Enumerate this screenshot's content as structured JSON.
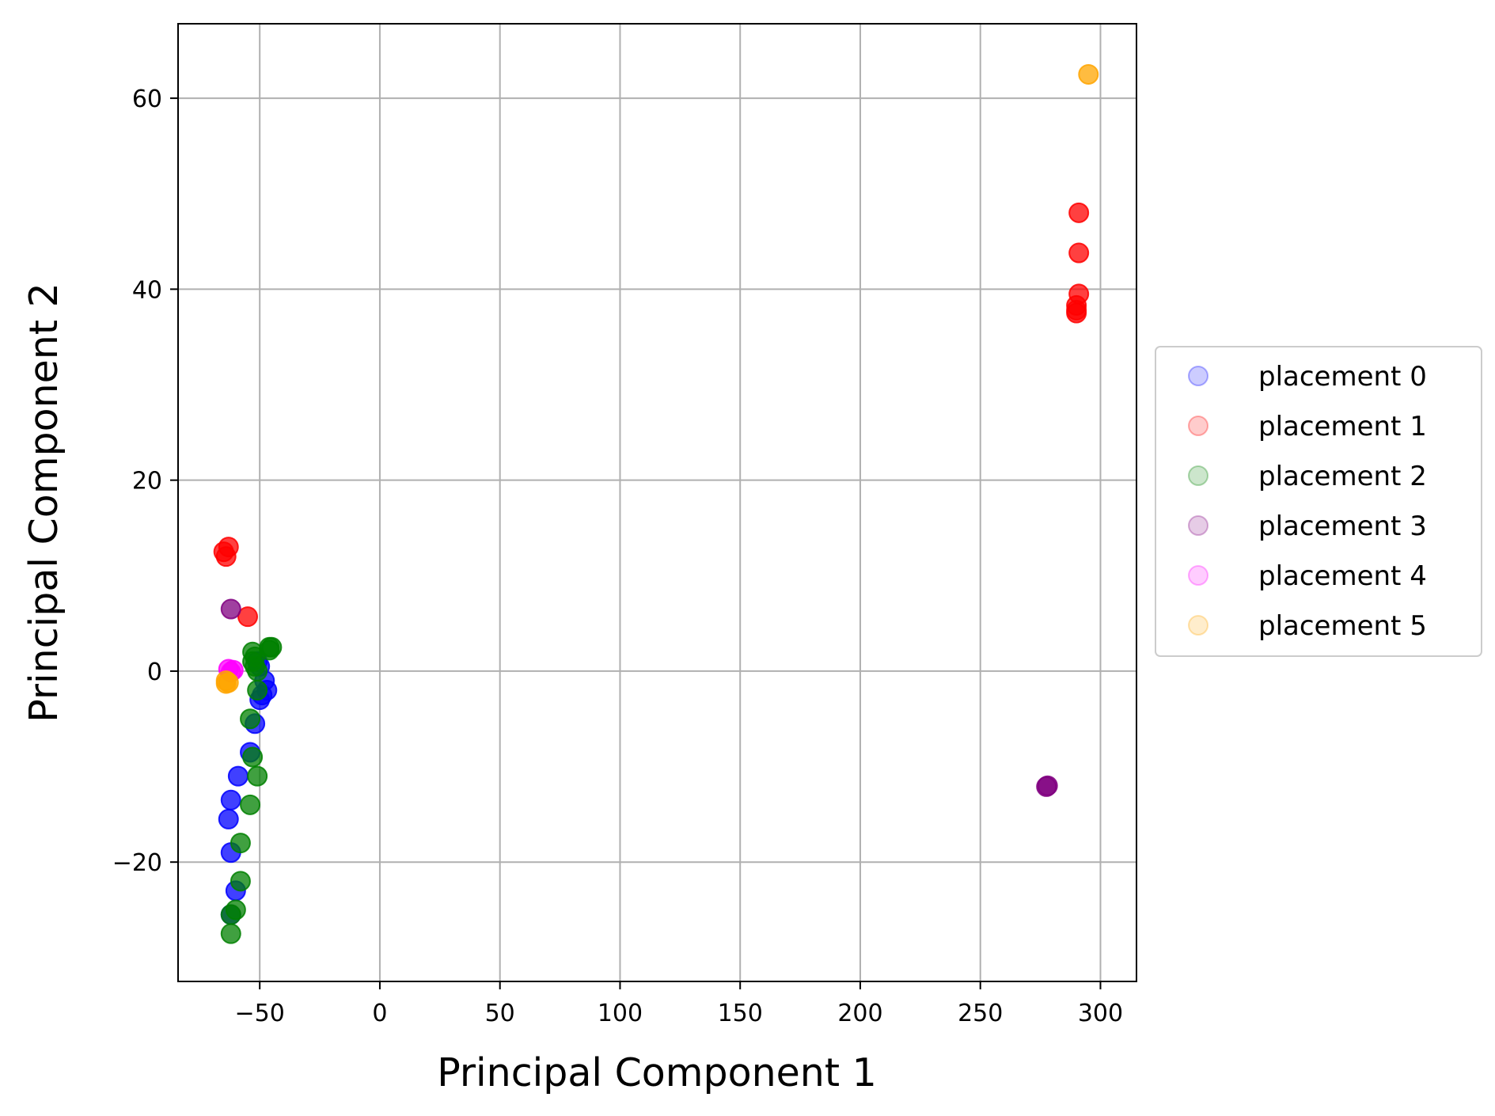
{
  "chart_data": {
    "type": "scatter",
    "title": "",
    "xlabel": "Principal Component 1",
    "ylabel": "Principal Component 2",
    "xlim": [
      -84,
      315
    ],
    "ylim": [
      -32.5,
      67.8
    ],
    "xticks": [
      -50,
      0,
      50,
      100,
      150,
      200,
      250,
      300
    ],
    "xtick_labels": [
      "−50",
      "0",
      "50",
      "100",
      "150",
      "200",
      "250",
      "300"
    ],
    "yticks": [
      -20,
      0,
      20,
      40,
      60
    ],
    "ytick_labels": [
      "−20",
      "0",
      "20",
      "40",
      "60"
    ],
    "grid": true,
    "legend_position": "right, outside plot area",
    "series": [
      {
        "name": "placement 0",
        "color": "#0000ff",
        "points": [
          [
            -51,
            1.0
          ],
          [
            -50,
            0.5
          ],
          [
            -48,
            -1.0
          ],
          [
            -47,
            -2.0
          ],
          [
            -49,
            -2.5
          ],
          [
            -50,
            -3.0
          ],
          [
            -52,
            -5.5
          ],
          [
            -54,
            -8.5
          ],
          [
            -59,
            -11.0
          ],
          [
            -62,
            -13.5
          ],
          [
            -63,
            -15.5
          ],
          [
            -62,
            -19.0
          ],
          [
            -60,
            -23.0
          ],
          [
            -62,
            -25.5
          ]
        ]
      },
      {
        "name": "placement 1",
        "color": "#ff0000",
        "points": [
          [
            -64,
            12.0
          ],
          [
            -65,
            12.5
          ],
          [
            -63,
            13.0
          ],
          [
            -55,
            5.7
          ],
          [
            291,
            48.0
          ],
          [
            291,
            43.8
          ],
          [
            291,
            39.5
          ],
          [
            290,
            38.3
          ],
          [
            290,
            37.8
          ],
          [
            290,
            37.5
          ]
        ]
      },
      {
        "name": "placement 2",
        "color": "#008000",
        "points": [
          [
            -53,
            2.0
          ],
          [
            -52,
            1.5
          ],
          [
            -53,
            1.0
          ],
          [
            -52,
            0.5
          ],
          [
            -51,
            0.0
          ],
          [
            -46,
            2.5
          ],
          [
            -45,
            2.5
          ],
          [
            -46,
            2.2
          ],
          [
            -51,
            -2.0
          ],
          [
            -54,
            -5.0
          ],
          [
            -53,
            -9.0
          ],
          [
            -51,
            -11.0
          ],
          [
            -54,
            -14.0
          ],
          [
            -58,
            -18.0
          ],
          [
            -58,
            -22.0
          ],
          [
            -60,
            -25.0
          ],
          [
            -62,
            -25.5
          ],
          [
            -62,
            -27.5
          ]
        ]
      },
      {
        "name": "placement 3",
        "color": "#800080",
        "points": [
          [
            -62,
            6.5
          ],
          [
            278,
            -12.0
          ],
          [
            277.5,
            -12.1
          ]
        ]
      },
      {
        "name": "placement 4",
        "color": "#ff00ff",
        "points": [
          [
            -63,
            0.2
          ],
          [
            -61,
            0.1
          ],
          [
            -62,
            -0.1
          ]
        ]
      },
      {
        "name": "placement 5",
        "color": "#ffa500",
        "points": [
          [
            -64,
            -1.0
          ],
          [
            -64,
            -1.3
          ],
          [
            -63,
            -1.2
          ],
          [
            295,
            62.5
          ]
        ]
      }
    ]
  }
}
